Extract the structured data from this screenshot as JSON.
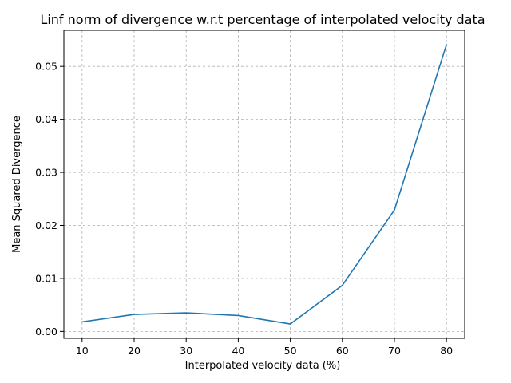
{
  "chart_data": {
    "type": "line",
    "title": "Linf norm of divergence w.r.t percentage of interpolated velocity data",
    "xlabel": "Interpolated velocity data (%)",
    "ylabel": "Mean Squared Divergence",
    "x": [
      10,
      20,
      30,
      40,
      50,
      60,
      70,
      80
    ],
    "series": [
      {
        "values": [
          0.0018,
          0.0032,
          0.0035,
          0.003,
          0.0014,
          0.0087,
          0.0229,
          0.0541
        ],
        "color": "#1f77b4"
      }
    ],
    "xlim": [
      6.5,
      83.5
    ],
    "ylim": [
      -0.0013,
      0.0568
    ],
    "xticks": [
      "10",
      "20",
      "30",
      "40",
      "50",
      "60",
      "70",
      "80"
    ],
    "yticks": [
      "0.00",
      "0.01",
      "0.02",
      "0.03",
      "0.04",
      "0.05"
    ],
    "grid": true,
    "grid_style": "dashed"
  }
}
